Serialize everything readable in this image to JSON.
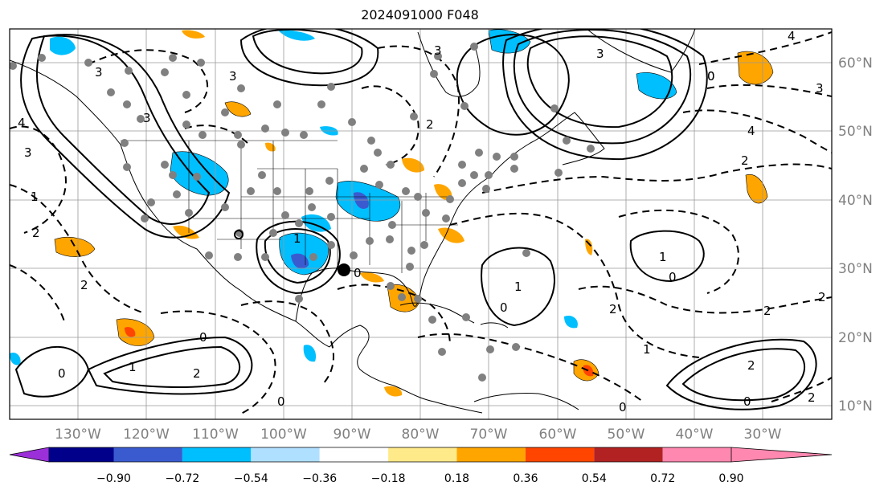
{
  "title": "2024091000 F048",
  "axes": {
    "lon_ticks": [
      "130°W",
      "120°W",
      "110°W",
      "100°W",
      "90°W",
      "80°W",
      "70°W",
      "60°W",
      "50°W",
      "40°W",
      "30°W"
    ],
    "lat_ticks": [
      "60°N",
      "50°N",
      "40°N",
      "30°N",
      "20°N",
      "10°N"
    ],
    "lon_range": [
      -138,
      -18
    ],
    "lat_range": [
      7.5,
      65
    ],
    "grid": true,
    "tick_color": "#808080"
  },
  "colorbar": {
    "ticks": [
      "−0.90",
      "−0.72",
      "−0.54",
      "−0.36",
      "−0.18",
      "0.18",
      "0.36",
      "0.54",
      "0.72",
      "0.90"
    ],
    "colors": [
      "#9b30d9",
      "#00008b",
      "#3a5bd0",
      "#00bfff",
      "#b0e0ff",
      "#ffffff",
      "#ffea8a",
      "#ffa500",
      "#ff4500",
      "#b22222",
      "#ff88b0"
    ],
    "extend": "both"
  },
  "contour_labels": [
    "0",
    "1",
    "2",
    "3",
    "4"
  ],
  "icons": {
    "storm_marker": "black-dot-icon",
    "obs_marker": "gray-dot-icon"
  }
}
